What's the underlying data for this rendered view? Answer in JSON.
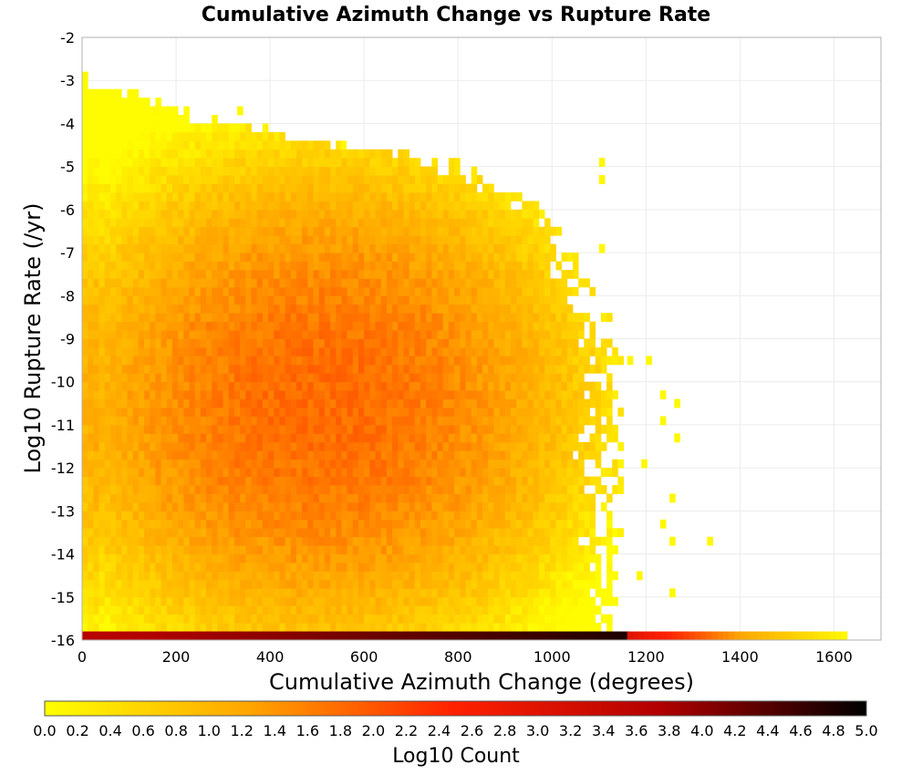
{
  "chart_data": {
    "type": "heatmap",
    "title": "Cumulative Azimuth Change vs Rupture Rate",
    "xlabel": "Cumulative Azimuth Change (degrees)",
    "ylabel": "Log10 Rupture Rate (/yr)",
    "xlim": [
      0,
      1700
    ],
    "ylim": [
      -16,
      -2
    ],
    "xticks": [
      "0",
      "200",
      "400",
      "600",
      "800",
      "1000",
      "1200",
      "1400",
      "1600"
    ],
    "xtick_values": [
      0,
      200,
      400,
      600,
      800,
      1000,
      1200,
      1400,
      1600
    ],
    "yticks": [
      "-2",
      "-3",
      "-4",
      "-5",
      "-6",
      "-7",
      "-8",
      "-9",
      "-10",
      "-11",
      "-12",
      "-13",
      "-14",
      "-15",
      "-16"
    ],
    "ytick_values": [
      -2,
      -3,
      -4,
      -5,
      -6,
      -7,
      -8,
      -9,
      -10,
      -11,
      -12,
      -13,
      -14,
      -15,
      -16
    ],
    "grid": true,
    "bin_size": {
      "x": 12,
      "y": 0.2
    },
    "summary_bands": [
      {
        "x_from": 0,
        "x_to": 1160,
        "y": -16,
        "log10_count_from": 3.6,
        "log10_count_to": 4.8
      },
      {
        "x_from": 1160,
        "x_to": 1280,
        "y": -16,
        "log10_count_from": 3.0,
        "log10_count_to": 2.2
      },
      {
        "x_from": 1280,
        "x_to": 1400,
        "y": -16,
        "log10_count_from": 2.2,
        "log10_count_to": 1.2
      },
      {
        "x_from": 1400,
        "x_to": 1620,
        "y": -16,
        "log10_count_from": 1.2,
        "log10_count_to": 0.1
      }
    ],
    "density_peak": {
      "x": 500,
      "y": -10.6,
      "log10_count": 1.8
    },
    "outer_cells": [
      {
        "x": 0,
        "y": -3.0,
        "log10_count": 0.1
      },
      {
        "x": 150,
        "y": -3.8,
        "log10_count": 0.1
      },
      {
        "x": 330,
        "y": -3.8,
        "log10_count": 0.1
      },
      {
        "x": 550,
        "y": -4.6,
        "log10_count": 0.1
      },
      {
        "x": 1100,
        "y": -5.0,
        "log10_count": 0.1
      },
      {
        "x": 1100,
        "y": -5.4,
        "log10_count": 0.1
      },
      {
        "x": 1100,
        "y": -7.0,
        "log10_count": 0.1
      },
      {
        "x": 1160,
        "y": -9.6,
        "log10_count": 0.1
      },
      {
        "x": 1200,
        "y": -9.6,
        "log10_count": 0.1
      },
      {
        "x": 1230,
        "y": -10.4,
        "log10_count": 0.1
      },
      {
        "x": 1260,
        "y": -10.6,
        "log10_count": 0.1
      },
      {
        "x": 1230,
        "y": -11.0,
        "log10_count": 0.1
      },
      {
        "x": 1260,
        "y": -11.4,
        "log10_count": 0.1
      },
      {
        "x": 1190,
        "y": -12.0,
        "log10_count": 0.1
      },
      {
        "x": 1250,
        "y": -12.8,
        "log10_count": 0.1
      },
      {
        "x": 1230,
        "y": -13.4,
        "log10_count": 0.1
      },
      {
        "x": 1250,
        "y": -13.8,
        "log10_count": 0.1
      },
      {
        "x": 1330,
        "y": -13.8,
        "log10_count": 0.1
      },
      {
        "x": 1180,
        "y": -14.6,
        "log10_count": 0.1
      },
      {
        "x": 1250,
        "y": -15.0,
        "log10_count": 0.1
      }
    ],
    "colorbar": {
      "label": "Log10 Count",
      "min": 0.0,
      "max": 5.0,
      "ticks": [
        "0.0",
        "0.2",
        "0.4",
        "0.6",
        "0.8",
        "1.0",
        "1.2",
        "1.4",
        "1.6",
        "1.8",
        "2.0",
        "2.2",
        "2.4",
        "2.6",
        "2.8",
        "3.0",
        "3.2",
        "3.4",
        "3.6",
        "3.8",
        "4.0",
        "4.2",
        "4.4",
        "4.6",
        "4.8",
        "5.0"
      ],
      "colors": [
        "#ffff00",
        "#ffa500",
        "#ff2000",
        "#b00000",
        "#000000"
      ]
    }
  }
}
